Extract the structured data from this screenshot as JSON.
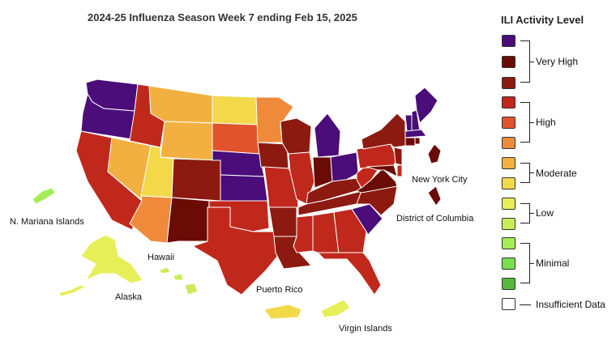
{
  "title": "2024-25 Influenza Season Week 7 ending Feb 15, 2025",
  "legend": {
    "title": "ILI Activity Level",
    "levels": [
      {
        "level": 13,
        "color": "#4a0d7a"
      },
      {
        "level": 12,
        "color": "#6b0b06"
      },
      {
        "level": 11,
        "color": "#8c1a10"
      },
      {
        "level": 10,
        "color": "#c1281c"
      },
      {
        "level": 9,
        "color": "#e0532c"
      },
      {
        "level": 8,
        "color": "#ee8a3a"
      },
      {
        "level": 7,
        "color": "#f2b040"
      },
      {
        "level": 6,
        "color": "#f3d94a"
      },
      {
        "level": 5,
        "color": "#e7ef58"
      },
      {
        "level": 4,
        "color": "#c9ec57"
      },
      {
        "level": 3,
        "color": "#a4ed55"
      },
      {
        "level": 2,
        "color": "#7be04e"
      },
      {
        "level": 1,
        "color": "#58b83a"
      }
    ],
    "groups": [
      "Very High",
      "High",
      "Moderate",
      "Low",
      "Minimal"
    ],
    "insufficient_label": "Insufficient Data",
    "insufficient_color": "#ffffff"
  },
  "labels": {
    "nmi": "N. Mariana Islands",
    "hawaii": "Hawaii",
    "alaska": "Alaska",
    "puerto_rico": "Puerto Rico",
    "virgin_islands": "Virgin Islands",
    "nyc": "New York City",
    "dc": "District of Columbia"
  },
  "states": {
    "WA": 13,
    "OR": 13,
    "CA": 10,
    "NV": 7,
    "ID": 10,
    "MT": 7,
    "WY": 7,
    "UT": 6,
    "AZ": 8,
    "CO": 11,
    "NM": 12,
    "ND": 6,
    "SD": 9,
    "NE": 13,
    "KS": 13,
    "OK": 10,
    "TX": 10,
    "MN": 8,
    "IA": 11,
    "MO": 10,
    "AR": 11,
    "LA": 11,
    "WI": 11,
    "IL": 10,
    "MI": 13,
    "IN": 12,
    "OH": 13,
    "KY": 11,
    "TN": 11,
    "MS": 10,
    "AL": 10,
    "GA": 10,
    "FL": 10,
    "SC": 13,
    "NC": 11,
    "VA": 12,
    "WV": 10,
    "PA": 10,
    "NY": 11,
    "NJ": 11,
    "DE": 10,
    "MD": 12,
    "VT": 13,
    "NH": 13,
    "ME": 13,
    "MA": 13,
    "CT": 12,
    "RI": 12,
    "NYC": 12,
    "DC": 12,
    "AK": 5,
    "HI": 4,
    "PR": 6,
    "VI": 5,
    "NMI": 3
  }
}
